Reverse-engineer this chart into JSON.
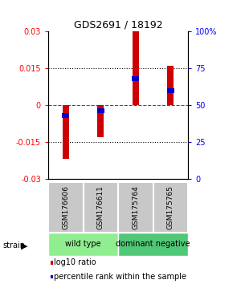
{
  "title": "GDS2691 / 18192",
  "samples": [
    "GSM176606",
    "GSM176611",
    "GSM175764",
    "GSM175765"
  ],
  "log10_ratio": [
    -0.022,
    -0.013,
    0.03,
    0.016
  ],
  "percentile_rank": [
    43,
    46,
    68,
    60
  ],
  "groups": [
    {
      "label": "wild type",
      "samples": [
        0,
        1
      ],
      "color": "#90EE90"
    },
    {
      "label": "dominant negative",
      "samples": [
        2,
        3
      ],
      "color": "#50C878"
    }
  ],
  "ylim": [
    -0.03,
    0.03
  ],
  "yticks": [
    -0.03,
    -0.015,
    0,
    0.015,
    0.03
  ],
  "ytick_labels_left": [
    "-0.03",
    "-0.015",
    "0",
    "0.015",
    "0.03"
  ],
  "ytick_labels_right": [
    "0",
    "25",
    "50",
    "75",
    "100%"
  ],
  "bar_color": "#CC0000",
  "pct_color": "#0000CC",
  "bar_width": 0.18,
  "legend_ratio": "log10 ratio",
  "legend_pct": "percentile rank within the sample",
  "background_color": "#ffffff"
}
